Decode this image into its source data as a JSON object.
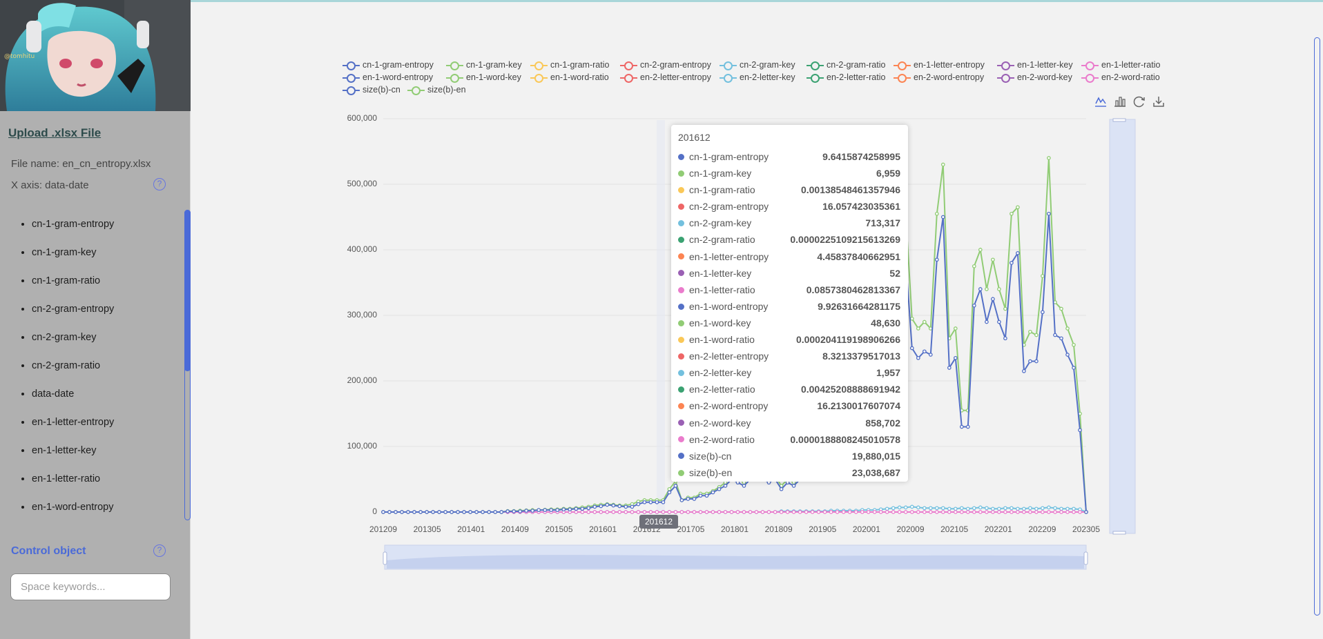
{
  "sidebar": {
    "upload_label": "Upload .xlsx File",
    "file_name": "File name: en_cn_entropy.xlsx",
    "x_axis": "X axis: data-date",
    "help_glyph": "?",
    "avatar_caption": "@tomhitu",
    "fields": [
      "cn-1-gram-entropy",
      "cn-1-gram-key",
      "cn-1-gram-ratio",
      "cn-2-gram-entropy",
      "cn-2-gram-key",
      "cn-2-gram-ratio",
      "data-date",
      "en-1-letter-entropy",
      "en-1-letter-key",
      "en-1-letter-ratio",
      "en-1-word-entropy"
    ],
    "control_label": "Control object",
    "search_placeholder": "Space keywords..."
  },
  "legend": {
    "items": [
      {
        "name": "cn-1-gram-entropy",
        "color": "#5470c6"
      },
      {
        "name": "cn-1-gram-key",
        "color": "#91cc75"
      },
      {
        "name": "cn-1-gram-ratio",
        "color": "#fac858"
      },
      {
        "name": "cn-2-gram-entropy",
        "color": "#ee6666"
      },
      {
        "name": "cn-2-gram-key",
        "color": "#73c0de"
      },
      {
        "name": "cn-2-gram-ratio",
        "color": "#3ba272"
      },
      {
        "name": "en-1-letter-entropy",
        "color": "#fc8452"
      },
      {
        "name": "en-1-letter-key",
        "color": "#9a60b4"
      },
      {
        "name": "en-1-letter-ratio",
        "color": "#ea7ccc"
      },
      {
        "name": "en-1-word-entropy",
        "color": "#5470c6"
      },
      {
        "name": "en-1-word-key",
        "color": "#91cc75"
      },
      {
        "name": "en-1-word-ratio",
        "color": "#fac858"
      },
      {
        "name": "en-2-letter-entropy",
        "color": "#ee6666"
      },
      {
        "name": "en-2-letter-key",
        "color": "#73c0de"
      },
      {
        "name": "en-2-letter-ratio",
        "color": "#3ba272"
      },
      {
        "name": "en-2-word-entropy",
        "color": "#fc8452"
      },
      {
        "name": "en-2-word-key",
        "color": "#9a60b4"
      },
      {
        "name": "en-2-word-ratio",
        "color": "#ea7ccc"
      },
      {
        "name": "size(b)-cn",
        "color": "#5470c6"
      },
      {
        "name": "size(b)-en",
        "color": "#91cc75"
      }
    ]
  },
  "toolbox": {
    "icons": [
      "line-chart-icon",
      "bar-chart-icon",
      "restore-icon",
      "download-icon"
    ]
  },
  "tooltip": {
    "title": "201612",
    "rows": [
      {
        "name": "cn-1-gram-entropy",
        "value": "9.6415874258995",
        "color": "#5470c6"
      },
      {
        "name": "cn-1-gram-key",
        "value": "6,959",
        "color": "#91cc75"
      },
      {
        "name": "cn-1-gram-ratio",
        "value": "0.00138548461357946",
        "color": "#fac858"
      },
      {
        "name": "cn-2-gram-entropy",
        "value": "16.057423035361",
        "color": "#ee6666"
      },
      {
        "name": "cn-2-gram-key",
        "value": "713,317",
        "color": "#73c0de"
      },
      {
        "name": "cn-2-gram-ratio",
        "value": "0.0000225109215613269",
        "color": "#3ba272"
      },
      {
        "name": "en-1-letter-entropy",
        "value": "4.45837840662951",
        "color": "#fc8452"
      },
      {
        "name": "en-1-letter-key",
        "value": "52",
        "color": "#9a60b4"
      },
      {
        "name": "en-1-letter-ratio",
        "value": "0.0857380462813367",
        "color": "#ea7ccc"
      },
      {
        "name": "en-1-word-entropy",
        "value": "9.92631664281175",
        "color": "#5470c6"
      },
      {
        "name": "en-1-word-key",
        "value": "48,630",
        "color": "#91cc75"
      },
      {
        "name": "en-1-word-ratio",
        "value": "0.000204119198906266",
        "color": "#fac858"
      },
      {
        "name": "en-2-letter-entropy",
        "value": "8.3213379517013",
        "color": "#ee6666"
      },
      {
        "name": "en-2-letter-key",
        "value": "1,957",
        "color": "#73c0de"
      },
      {
        "name": "en-2-letter-ratio",
        "value": "0.00425208888691942",
        "color": "#3ba272"
      },
      {
        "name": "en-2-word-entropy",
        "value": "16.2130017607074",
        "color": "#fc8452"
      },
      {
        "name": "en-2-word-key",
        "value": "858,702",
        "color": "#9a60b4"
      },
      {
        "name": "en-2-word-ratio",
        "value": "0.0000188808245010578",
        "color": "#ea7ccc"
      },
      {
        "name": "size(b)-cn",
        "value": "19,880,015",
        "color": "#5470c6"
      },
      {
        "name": "size(b)-en",
        "value": "23,038,687",
        "color": "#91cc75"
      }
    ]
  },
  "chart_data": {
    "type": "line",
    "x_pointer_label": "201612",
    "ylim": [
      0,
      600000
    ],
    "y_ticks": [
      "0",
      "100,000",
      "200,000",
      "300,000",
      "400,000",
      "500,000",
      "600,000"
    ],
    "x_tick_labels": [
      "201209",
      "201305",
      "201401",
      "201409",
      "201505",
      "201601",
      "201612",
      "201705",
      "201801",
      "201809",
      "201905",
      "202001",
      "202009",
      "202105",
      "202201",
      "202209",
      "202305"
    ],
    "series": [
      {
        "name": "size(b)-cn",
        "color": "#5470c6",
        "values": [
          0,
          0,
          0,
          0,
          0,
          0,
          0,
          0,
          0,
          0,
          0,
          0,
          0,
          0,
          0,
          0,
          0,
          0,
          0,
          0,
          1000,
          1000,
          1000,
          2000,
          2000,
          3000,
          3000,
          3000,
          3000,
          4000,
          4000,
          5000,
          5000,
          6000,
          8000,
          9000,
          11000,
          10000,
          9000,
          8000,
          8000,
          12000,
          15000,
          15000,
          15000,
          15000,
          30000,
          40000,
          18000,
          20000,
          20000,
          25000,
          25000,
          30000,
          35000,
          40000,
          50000,
          45000,
          40000,
          50000,
          55000,
          50000,
          45000,
          50000,
          35000,
          45000,
          40000,
          50000,
          60000,
          70000,
          80000,
          90000,
          100000,
          110000,
          120000,
          130000,
          140000,
          150000,
          160000,
          170000,
          180000,
          190000,
          200000,
          275000,
          385000,
          250000,
          235000,
          245000,
          240000,
          385000,
          450000,
          220000,
          235000,
          130000,
          130000,
          315000,
          340000,
          290000,
          325000,
          290000,
          265000,
          380000,
          395000,
          215000,
          230000,
          230000,
          305000,
          455000,
          270000,
          265000,
          240000,
          220000,
          125000,
          0
        ]
      },
      {
        "name": "size(b)-en",
        "color": "#91cc75",
        "values": [
          0,
          0,
          0,
          0,
          0,
          0,
          0,
          0,
          0,
          0,
          0,
          0,
          0,
          0,
          0,
          0,
          0,
          0,
          0,
          0,
          1500,
          1500,
          2000,
          2500,
          3000,
          3000,
          3500,
          4000,
          4000,
          5000,
          5000,
          6000,
          7000,
          8000,
          10000,
          11000,
          12000,
          11000,
          10000,
          10000,
          12000,
          16000,
          18000,
          18000,
          18000,
          18000,
          35000,
          47000,
          18000,
          22000,
          22000,
          28000,
          28000,
          32000,
          38000,
          45000,
          55000,
          50000,
          45000,
          55000,
          60000,
          55000,
          50000,
          55000,
          40000,
          50000,
          45000,
          55000,
          65000,
          75000,
          85000,
          95000,
          110000,
          120000,
          130000,
          140000,
          150000,
          160000,
          170000,
          180000,
          190000,
          200000,
          230000,
          325000,
          455000,
          295000,
          280000,
          290000,
          280000,
          455000,
          530000,
          265000,
          280000,
          155000,
          155000,
          375000,
          400000,
          340000,
          385000,
          340000,
          310000,
          455000,
          465000,
          255000,
          275000,
          270000,
          360000,
          540000,
          320000,
          310000,
          280000,
          255000,
          150000,
          0
        ]
      },
      {
        "name": "en-2-word-ratio",
        "color": "#ea7ccc",
        "values": [
          0,
          0,
          0,
          0,
          0,
          0,
          0,
          0,
          0,
          0,
          0,
          0,
          0,
          0,
          0,
          0,
          0,
          0,
          0,
          0,
          0,
          0,
          0,
          0,
          0,
          0,
          0,
          0,
          0,
          0,
          0,
          0,
          0,
          0,
          0,
          0,
          0,
          0,
          0,
          0,
          0,
          0,
          0,
          0,
          0,
          0,
          0,
          0,
          0,
          0,
          0,
          0,
          0,
          0,
          0,
          0,
          0,
          0,
          0,
          0,
          0,
          0,
          0,
          0,
          0,
          0,
          0,
          0,
          0,
          0,
          0,
          0,
          0,
          0,
          0,
          0,
          0,
          0,
          0,
          0,
          0,
          0,
          0,
          0,
          0,
          0,
          0,
          0,
          0,
          0,
          0,
          0,
          0,
          0,
          0,
          0,
          0,
          0,
          0,
          0,
          0,
          0,
          0,
          0,
          0,
          0,
          0,
          0,
          0,
          0,
          0,
          0,
          0,
          0
        ]
      },
      {
        "name": "cn-2-gram-key",
        "color": "#73c0de",
        "values": [
          0,
          0,
          0,
          0,
          0,
          0,
          0,
          0,
          0,
          0,
          0,
          0,
          0,
          0,
          0,
          0,
          0,
          0,
          0,
          0,
          0,
          0,
          0,
          0,
          0,
          0,
          0,
          0,
          0,
          0,
          0,
          0,
          0,
          0,
          0,
          0,
          0,
          0,
          0,
          0,
          0,
          0,
          0,
          0,
          0,
          0,
          0,
          0,
          0,
          0,
          0,
          0,
          0,
          0,
          0,
          0,
          0,
          0,
          0,
          0,
          0,
          0,
          0,
          0,
          1000,
          1000,
          1000,
          1000,
          1000,
          1000,
          1000,
          1000,
          2000,
          2000,
          2000,
          2000,
          2000,
          3000,
          3000,
          3000,
          4000,
          5000,
          6000,
          7000,
          7000,
          8000,
          7000,
          6000,
          6000,
          6000,
          6000,
          5000,
          5000,
          6000,
          5000,
          6000,
          7000,
          6000,
          5000,
          5000,
          6000,
          6000,
          5000,
          5000,
          6000,
          5000,
          6000,
          7000,
          6000,
          5000,
          5000,
          5000,
          4000,
          0
        ]
      }
    ]
  },
  "dataZoom": {
    "range_start": 0,
    "range_end": 100
  }
}
